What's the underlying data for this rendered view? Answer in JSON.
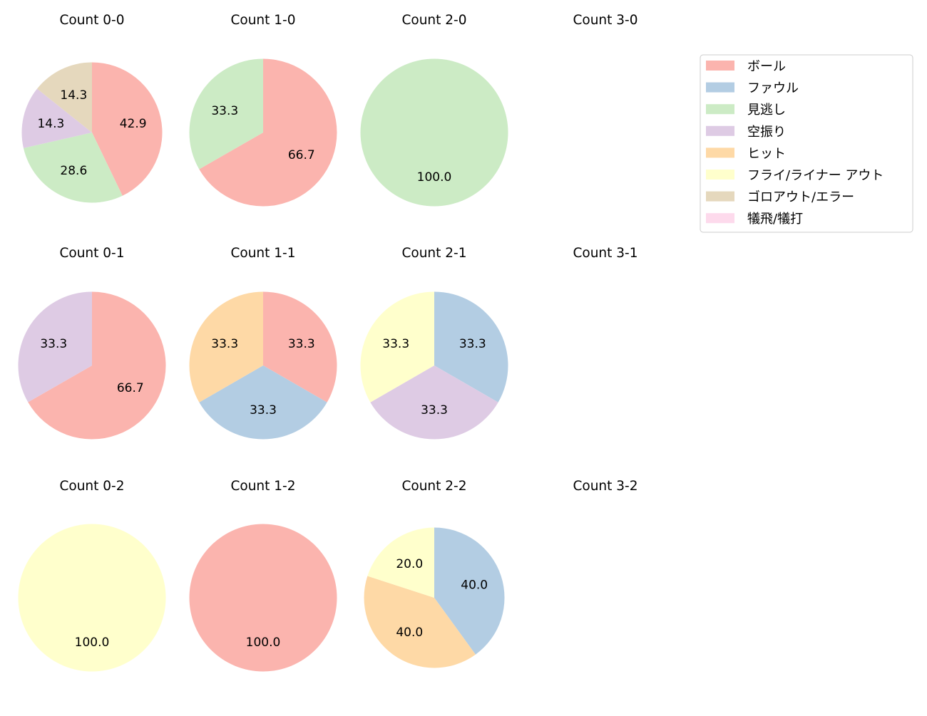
{
  "chart_data": {
    "type": "pie",
    "legend": {
      "placement": "upper-right",
      "entries": [
        {
          "label": "ボール",
          "color": "#fbb4ae"
        },
        {
          "label": "ファウル",
          "color": "#b3cde3"
        },
        {
          "label": "見逃し",
          "color": "#ccebc5"
        },
        {
          "label": "空振り",
          "color": "#decbe4"
        },
        {
          "label": "ヒット",
          "color": "#fed9a6"
        },
        {
          "label": "フライ/ライナー アウト",
          "color": "#ffffcc"
        },
        {
          "label": "ゴロアウト/エラー",
          "color": "#e5d8bd"
        },
        {
          "label": "犠飛/犠打",
          "color": "#fddaec"
        }
      ]
    },
    "start_angle": 90,
    "direction": "clockwise",
    "charts": [
      {
        "title": "Count 0-0",
        "slices": [
          {
            "category": "ボール",
            "value": 42.9
          },
          {
            "category": "見逃し",
            "value": 28.6
          },
          {
            "category": "空振り",
            "value": 14.3
          },
          {
            "category": "ゴロアウト/エラー",
            "value": 14.3
          }
        ]
      },
      {
        "title": "Count 1-0",
        "slices": [
          {
            "category": "ボール",
            "value": 66.7
          },
          {
            "category": "見逃し",
            "value": 33.3
          }
        ]
      },
      {
        "title": "Count 2-0",
        "slices": [
          {
            "category": "見逃し",
            "value": 100.0
          }
        ]
      },
      {
        "title": "Count 3-0",
        "slices": []
      },
      {
        "title": "Count 0-1",
        "slices": [
          {
            "category": "ボール",
            "value": 66.7
          },
          {
            "category": "空振り",
            "value": 33.3
          }
        ]
      },
      {
        "title": "Count 1-1",
        "slices": [
          {
            "category": "ボール",
            "value": 33.3
          },
          {
            "category": "ファウル",
            "value": 33.3
          },
          {
            "category": "ヒット",
            "value": 33.3
          }
        ]
      },
      {
        "title": "Count 2-1",
        "slices": [
          {
            "category": "ファウル",
            "value": 33.3
          },
          {
            "category": "空振り",
            "value": 33.3
          },
          {
            "category": "フライ/ライナー アウト",
            "value": 33.3
          }
        ]
      },
      {
        "title": "Count 3-1",
        "slices": []
      },
      {
        "title": "Count 0-2",
        "slices": [
          {
            "category": "フライ/ライナー アウト",
            "value": 100.0
          }
        ]
      },
      {
        "title": "Count 1-2",
        "slices": [
          {
            "category": "ボール",
            "value": 100.0
          }
        ]
      },
      {
        "title": "Count 2-2",
        "slices": [
          {
            "category": "ファウル",
            "value": 40.0
          },
          {
            "category": "ヒット",
            "value": 40.0
          },
          {
            "category": "フライ/ライナー アウト",
            "value": 20.0
          }
        ]
      },
      {
        "title": "Count 3-2",
        "slices": []
      }
    ]
  }
}
